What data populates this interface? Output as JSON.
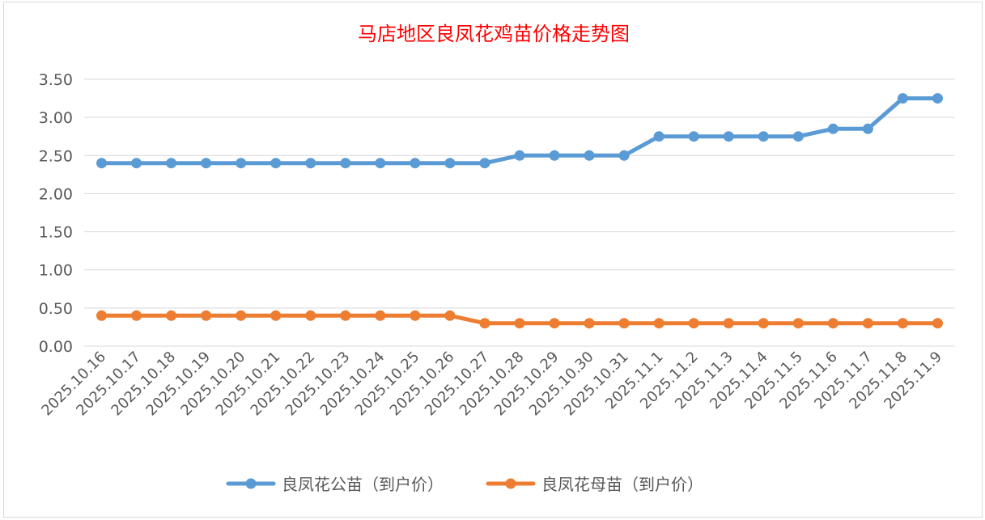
{
  "chart_data": {
    "type": "line",
    "title": "马店地区良凤花鸡苗价格走势图",
    "title_color": "#ff0000",
    "xlabel": "",
    "ylabel": "",
    "ylim": [
      0,
      3.5
    ],
    "yticks": [
      "0.00",
      "0.50",
      "1.00",
      "1.50",
      "2.00",
      "2.50",
      "3.00",
      "3.50"
    ],
    "grid": true,
    "legend_position": "bottom",
    "categories": [
      "2025.10.16",
      "2025.10.17",
      "2025.10.18",
      "2025.10.19",
      "2025.10.20",
      "2025.10.21",
      "2025.10.22",
      "2025.10.23",
      "2025.10.24",
      "2025.10.25",
      "2025.10.26",
      "2025.10.27",
      "2025.10.28",
      "2025.10.29",
      "2025.10.30",
      "2025.10.31",
      "2025.11.1",
      "2025.11.2",
      "2025.11.3",
      "2025.11.4",
      "2025.11.5",
      "2025.11.6",
      "2025.11.7",
      "2025.11.8",
      "2025.11.9"
    ],
    "series": [
      {
        "name": "良凤花公苗（到户价）",
        "color": "#5b9bd5",
        "values": [
          2.4,
          2.4,
          2.4,
          2.4,
          2.4,
          2.4,
          2.4,
          2.4,
          2.4,
          2.4,
          2.4,
          2.4,
          2.5,
          2.5,
          2.5,
          2.5,
          2.75,
          2.75,
          2.75,
          2.75,
          2.75,
          2.85,
          2.85,
          3.25,
          3.25
        ]
      },
      {
        "name": "良凤花母苗（到户价）",
        "color": "#ed7d31",
        "values": [
          0.4,
          0.4,
          0.4,
          0.4,
          0.4,
          0.4,
          0.4,
          0.4,
          0.4,
          0.4,
          0.4,
          0.3,
          0.3,
          0.3,
          0.3,
          0.3,
          0.3,
          0.3,
          0.3,
          0.3,
          0.3,
          0.3,
          0.3,
          0.3,
          0.3
        ]
      }
    ]
  }
}
